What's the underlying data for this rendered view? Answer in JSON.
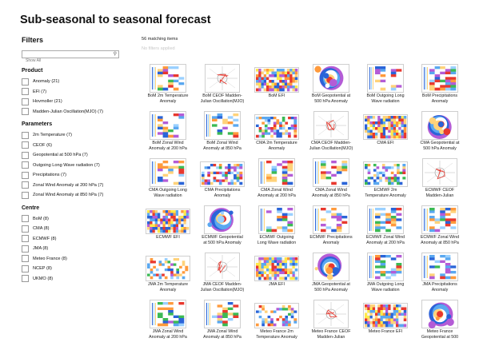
{
  "page_title": "Sub-seasonal to seasonal forecast",
  "filters": {
    "heading": "Filters",
    "search_placeholder": "Show All",
    "groups": [
      {
        "title": "Product",
        "options": [
          "Anomaly (21)",
          "EFI (7)",
          "Hovmoller (21)",
          "Madden-Julian Oscillation(MJO) (7)"
        ]
      },
      {
        "title": "Parameters",
        "options": [
          "2m Temperature (7)",
          "CEOF (6)",
          "Geopotential at 500 hPa (7)",
          "Outgoing Long Wave radiation (7)",
          "Precipitations (7)",
          "Zonal Wind Anomaly at 200 hPa (7)",
          "Zonal Wind Anomaly at 850 hPa (7)"
        ]
      },
      {
        "title": "Centre",
        "options": [
          "BoM (8)",
          "CMA (8)",
          "ECMWF (8)",
          "JMA (8)",
          "Meteo France (8)",
          "NCEP (8)",
          "UKMO (8)"
        ]
      }
    ]
  },
  "results": {
    "count_text": "56 matching items",
    "no_filters_text": "No filters applied"
  },
  "items": [
    {
      "l1": "BoM 2m Temperature",
      "l2": "Anomaly",
      "kind": "hov"
    },
    {
      "l1": "BoM CEOF Madden-",
      "l2": "Julian Oscillation(MJO)",
      "kind": "mjo"
    },
    {
      "l1": "BoM EFI",
      "l2": "",
      "kind": "efi"
    },
    {
      "l1": "BoM Geopotential at",
      "l2": "500 hPa Anomaly",
      "kind": "geo"
    },
    {
      "l1": "BoM Outgoing Long",
      "l2": "Wave radiation",
      "kind": "hov"
    },
    {
      "l1": "BoM Precipitations",
      "l2": "Anomaly",
      "kind": "hov"
    },
    {
      "l1": "BoM Zonal Wind",
      "l2": "Anomaly at 200 hPa",
      "kind": "hov"
    },
    {
      "l1": "BoM Zonal Wind",
      "l2": "Anomaly at 850 hPa",
      "kind": "hov"
    },
    {
      "l1": "CMA 2m Temperature",
      "l2": "Anomaly",
      "kind": "hovw"
    },
    {
      "l1": "CMA CEOF Madden-",
      "l2": "Julian Oscillation(MJO)",
      "kind": "mjo"
    },
    {
      "l1": "CMA EFI",
      "l2": "",
      "kind": "efi"
    },
    {
      "l1": "CMA Geopotential at",
      "l2": "500 hPa Anomaly",
      "kind": "geo"
    },
    {
      "l1": "CMA Outgoing Long",
      "l2": "Wave radiation",
      "kind": "hov"
    },
    {
      "l1": "CMA Precipitations",
      "l2": "Anomaly",
      "kind": "hovw"
    },
    {
      "l1": "CMA Zonal Wind",
      "l2": "Anomaly at 200 hPa",
      "kind": "hov"
    },
    {
      "l1": "CMA Zonal Wind",
      "l2": "Anomaly at 850 hPa",
      "kind": "hov"
    },
    {
      "l1": "ECMWF 2m",
      "l2": "Temperature Anomaly",
      "kind": "hovw"
    },
    {
      "l1": "ECMWF CEOF",
      "l2": "Madden-Julian",
      "kind": "mjo"
    },
    {
      "l1": "ECMWF EFI",
      "l2": "",
      "kind": "efi"
    },
    {
      "l1": "ECMWF Geopotential",
      "l2": "at 500 hPa Anomaly",
      "kind": "geo"
    },
    {
      "l1": "ECMWF Outgoing",
      "l2": "Long Wave radiation",
      "kind": "hov"
    },
    {
      "l1": "ECMWF Precipitations",
      "l2": "Anomaly",
      "kind": "hov"
    },
    {
      "l1": "ECMWF Zonal Wind",
      "l2": "Anomaly at 200 hPa",
      "kind": "hov"
    },
    {
      "l1": "ECMWF Zonal Wind",
      "l2": "Anomaly at 850 hPa",
      "kind": "hov"
    },
    {
      "l1": "JMA 2m Temperature",
      "l2": "Anomaly",
      "kind": "hovw"
    },
    {
      "l1": "JMA CEOF Madden-",
      "l2": "Julian Oscillation(MJO)",
      "kind": "mjo"
    },
    {
      "l1": "JMA EFI",
      "l2": "",
      "kind": "efi"
    },
    {
      "l1": "JMA Geopotential at",
      "l2": "500 hPa Anomaly",
      "kind": "geo"
    },
    {
      "l1": "JMA Outgoing Long",
      "l2": "Wave radiation",
      "kind": "hov"
    },
    {
      "l1": "JMA Precipitations",
      "l2": "Anomaly",
      "kind": "hov"
    },
    {
      "l1": "JMA Zonal Wind",
      "l2": "Anomaly at 200 hPa",
      "kind": "hov"
    },
    {
      "l1": "JMA Zonal Wind",
      "l2": "Anomaly at 850 hPa",
      "kind": "hov"
    },
    {
      "l1": "Meteo France 2m",
      "l2": "Temperature Anomaly",
      "kind": "hovw"
    },
    {
      "l1": "Meteo France CEOF",
      "l2": "Madden-Julian",
      "kind": "mjo"
    },
    {
      "l1": "Meteo France EFI",
      "l2": "",
      "kind": "efi"
    },
    {
      "l1": "Meteo France",
      "l2": "Geopotential at 500",
      "kind": "geo"
    }
  ]
}
